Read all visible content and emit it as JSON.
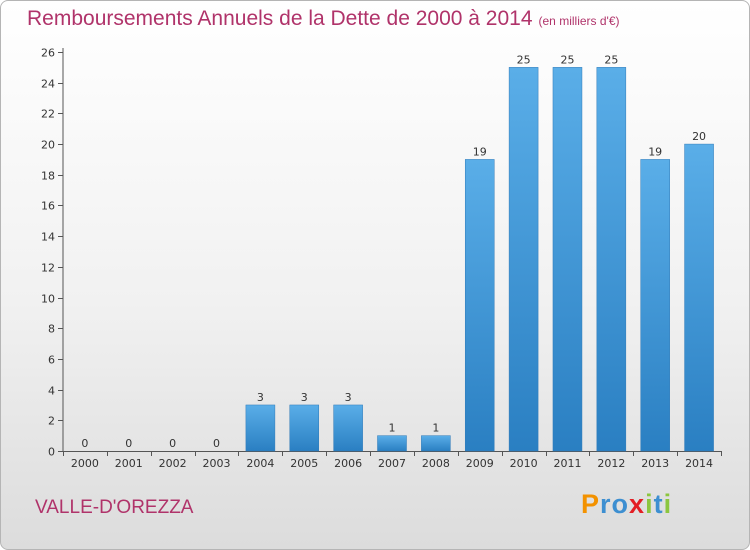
{
  "title": {
    "main": "Remboursements Annuels de la Dette de 2000 à 2014",
    "unit": "(en milliers d'€)"
  },
  "commune": "VALLE-D'OREZZA",
  "logo": {
    "text": "Proxiti",
    "letters": [
      "P",
      "r",
      "o",
      "x",
      "i",
      "t",
      "i"
    ],
    "colors": [
      "#f39200",
      "#3d8fd1",
      "#3d8fd1",
      "#e31e24",
      "#8cc63f",
      "#3d8fd1",
      "#8cc63f"
    ]
  },
  "colors": {
    "title": "#b0336a",
    "bar_top": "#5aaee8",
    "bar_bottom": "#2a7fc2"
  },
  "chart_data": {
    "type": "bar",
    "title": "Remboursements Annuels de la Dette de 2000 à 2014",
    "xlabel": "",
    "ylabel": "",
    "categories": [
      "2000",
      "2001",
      "2002",
      "2003",
      "2004",
      "2005",
      "2006",
      "2007",
      "2008",
      "2009",
      "2010",
      "2011",
      "2012",
      "2013",
      "2014"
    ],
    "values": [
      0,
      0,
      0,
      0,
      3,
      3,
      3,
      1,
      1,
      19,
      25,
      25,
      25,
      19,
      20
    ],
    "labels": [
      "0",
      "0",
      "0",
      "0",
      "3",
      "3",
      "3",
      "1",
      "1",
      "19",
      "25",
      "25",
      "25",
      "19",
      "20"
    ],
    "ylim": [
      0,
      26
    ],
    "yticks": [
      0,
      2,
      4,
      6,
      8,
      10,
      12,
      14,
      16,
      18,
      20,
      22,
      24,
      26
    ],
    "grid": false,
    "legend": "none"
  }
}
